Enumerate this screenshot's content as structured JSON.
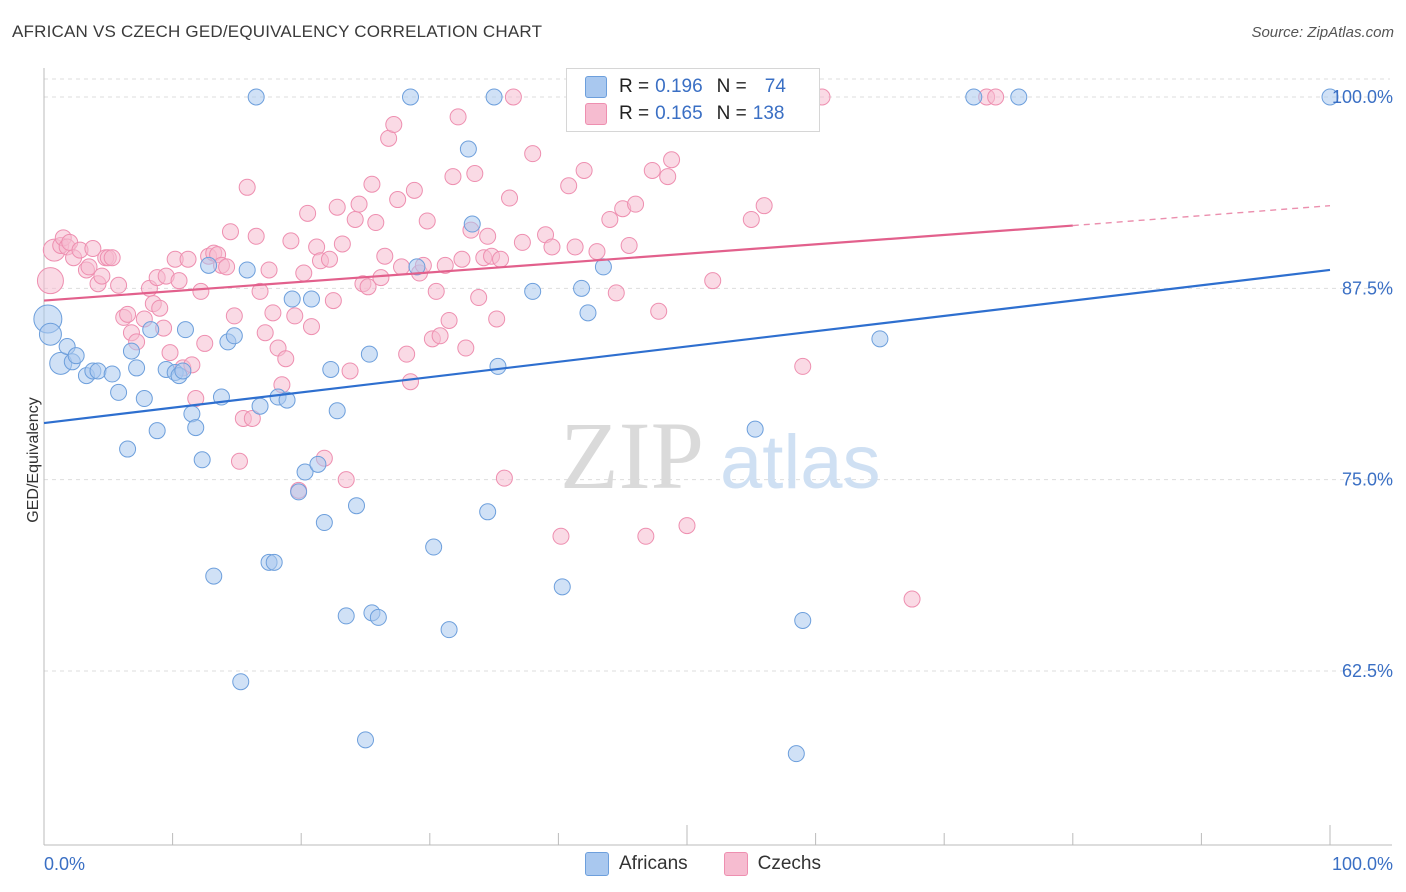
{
  "header": {
    "title": "AFRICAN VS CZECH GED/EQUIVALENCY CORRELATION CHART",
    "source": "Source: ZipAtlas.com"
  },
  "watermark": {
    "zip": "ZIP",
    "atlas": "atlas"
  },
  "legend_top": {
    "rows": [
      {
        "r_label": "R =",
        "r_value": "0.196",
        "n_label": "N =",
        "n_value": "74"
      },
      {
        "r_label": "R =",
        "r_value": "0.165",
        "n_label": "N =",
        "n_value": "138"
      }
    ]
  },
  "legend_bottom": {
    "items": [
      {
        "label": "Africans"
      },
      {
        "label": "Czechs"
      }
    ]
  },
  "colors": {
    "africans_fill": "#a9c8ef",
    "africans_stroke": "#6d9fdc",
    "africans_line": "#2e6fcf",
    "czechs_fill": "#f6bcd0",
    "czechs_stroke": "#ee8fb0",
    "czechs_line": "#e2608c",
    "axis_label": "#3a6fc4",
    "grid": "#dddddd"
  },
  "chart_data": {
    "type": "scatter",
    "title": "AFRICAN VS CZECH GED/EQUIVALENCY CORRELATION CHART",
    "xlabel": "",
    "ylabel": "GED/Equivalency",
    "xlim": [
      0,
      100
    ],
    "ylim": [
      53,
      101
    ],
    "x_tick_labels": [
      "0.0%",
      "100.0%"
    ],
    "y_ticks": [
      62.5,
      75.0,
      87.5,
      100.0
    ],
    "y_tick_labels": [
      "62.5%",
      "75.0%",
      "87.5%",
      "100.0%"
    ],
    "grid": true,
    "legend_position": "top-center",
    "series": [
      {
        "name": "Africans",
        "R": 0.196,
        "N": 74,
        "trend": {
          "x": [
            0,
            100
          ],
          "y": [
            78.7,
            88.7
          ]
        },
        "points": [
          [
            0.3,
            85.5
          ],
          [
            0.5,
            84.5
          ],
          [
            1.3,
            82.6
          ],
          [
            1.8,
            83.7
          ],
          [
            2.2,
            82.7
          ],
          [
            2.5,
            83.1
          ],
          [
            3.3,
            81.8
          ],
          [
            3.8,
            82.1
          ],
          [
            4.2,
            82.1
          ],
          [
            5.3,
            81.9
          ],
          [
            5.8,
            80.7
          ],
          [
            6.5,
            77.0
          ],
          [
            6.8,
            83.4
          ],
          [
            7.2,
            82.3
          ],
          [
            7.8,
            80.3
          ],
          [
            8.3,
            84.8
          ],
          [
            8.8,
            78.2
          ],
          [
            9.5,
            82.2
          ],
          [
            10.2,
            82.0
          ],
          [
            10.5,
            81.8
          ],
          [
            10.8,
            82.1
          ],
          [
            11.0,
            84.8
          ],
          [
            11.5,
            79.3
          ],
          [
            11.8,
            78.4
          ],
          [
            12.3,
            76.3
          ],
          [
            12.8,
            89.0
          ],
          [
            13.2,
            68.7
          ],
          [
            13.8,
            80.4
          ],
          [
            14.3,
            84.0
          ],
          [
            14.8,
            84.4
          ],
          [
            15.3,
            61.8
          ],
          [
            15.8,
            88.7
          ],
          [
            16.5,
            100.0
          ],
          [
            16.8,
            79.8
          ],
          [
            17.5,
            69.6
          ],
          [
            17.9,
            69.6
          ],
          [
            18.2,
            80.4
          ],
          [
            18.9,
            80.2
          ],
          [
            19.3,
            86.8
          ],
          [
            19.8,
            74.2
          ],
          [
            20.3,
            75.5
          ],
          [
            20.8,
            86.8
          ],
          [
            21.3,
            76.0
          ],
          [
            21.8,
            72.2
          ],
          [
            22.3,
            82.2
          ],
          [
            22.8,
            79.5
          ],
          [
            23.5,
            66.1
          ],
          [
            24.3,
            73.3
          ],
          [
            25.0,
            58.0
          ],
          [
            25.3,
            83.2
          ],
          [
            25.5,
            66.3
          ],
          [
            26.0,
            66.0
          ],
          [
            28.5,
            100.0
          ],
          [
            29.0,
            88.9
          ],
          [
            30.3,
            70.6
          ],
          [
            31.5,
            65.2
          ],
          [
            33.0,
            96.6
          ],
          [
            33.3,
            91.7
          ],
          [
            34.5,
            72.9
          ],
          [
            35.0,
            100.0
          ],
          [
            35.3,
            82.4
          ],
          [
            38.0,
            87.3
          ],
          [
            40.3,
            68.0
          ],
          [
            41.8,
            87.5
          ],
          [
            42.3,
            85.9
          ],
          [
            43.5,
            88.9
          ],
          [
            52.3,
            100.0
          ],
          [
            55.3,
            78.3
          ],
          [
            58.5,
            57.1
          ],
          [
            59.0,
            65.8
          ],
          [
            65.0,
            84.2
          ],
          [
            72.3,
            100.0
          ],
          [
            75.8,
            100.0
          ],
          [
            100.0,
            100.0
          ]
        ]
      },
      {
        "name": "Czechs",
        "R": 0.165,
        "N": 138,
        "trend": {
          "x": [
            0,
            80
          ],
          "y": [
            86.7,
            91.6
          ],
          "dashed_to": {
            "x": 100,
            "y": 92.9
          }
        },
        "points": [
          [
            0.5,
            88.0
          ],
          [
            0.8,
            90.0
          ],
          [
            1.3,
            90.3
          ],
          [
            1.5,
            90.8
          ],
          [
            1.8,
            90.2
          ],
          [
            2.0,
            90.5
          ],
          [
            2.3,
            89.5
          ],
          [
            2.8,
            90.0
          ],
          [
            3.3,
            88.7
          ],
          [
            3.5,
            88.9
          ],
          [
            3.8,
            90.1
          ],
          [
            4.2,
            87.8
          ],
          [
            4.5,
            88.3
          ],
          [
            4.8,
            89.5
          ],
          [
            5.0,
            89.5
          ],
          [
            5.3,
            89.5
          ],
          [
            5.8,
            87.7
          ],
          [
            6.2,
            85.6
          ],
          [
            6.5,
            85.8
          ],
          [
            6.8,
            84.6
          ],
          [
            7.2,
            84.0
          ],
          [
            7.8,
            85.5
          ],
          [
            8.2,
            87.5
          ],
          [
            8.5,
            86.5
          ],
          [
            8.8,
            88.2
          ],
          [
            9.0,
            86.2
          ],
          [
            9.3,
            84.9
          ],
          [
            9.5,
            88.3
          ],
          [
            9.8,
            83.3
          ],
          [
            10.2,
            89.4
          ],
          [
            10.5,
            88.0
          ],
          [
            10.8,
            82.3
          ],
          [
            11.2,
            89.4
          ],
          [
            11.5,
            82.5
          ],
          [
            11.8,
            80.3
          ],
          [
            12.2,
            87.3
          ],
          [
            12.5,
            83.9
          ],
          [
            12.8,
            89.6
          ],
          [
            13.2,
            89.8
          ],
          [
            13.5,
            89.7
          ],
          [
            13.8,
            89.0
          ],
          [
            14.2,
            88.9
          ],
          [
            14.5,
            91.2
          ],
          [
            14.8,
            85.7
          ],
          [
            15.2,
            76.2
          ],
          [
            15.5,
            79.0
          ],
          [
            15.8,
            94.1
          ],
          [
            16.2,
            79.0
          ],
          [
            16.5,
            90.9
          ],
          [
            16.8,
            87.3
          ],
          [
            17.2,
            84.6
          ],
          [
            17.5,
            88.7
          ],
          [
            17.8,
            85.9
          ],
          [
            18.2,
            83.6
          ],
          [
            18.5,
            81.2
          ],
          [
            18.8,
            82.9
          ],
          [
            19.2,
            90.6
          ],
          [
            19.5,
            85.7
          ],
          [
            19.8,
            74.3
          ],
          [
            20.2,
            88.5
          ],
          [
            20.5,
            92.4
          ],
          [
            20.8,
            85.0
          ],
          [
            21.2,
            90.2
          ],
          [
            21.5,
            89.3
          ],
          [
            21.8,
            76.4
          ],
          [
            22.2,
            89.4
          ],
          [
            22.5,
            86.7
          ],
          [
            22.8,
            92.8
          ],
          [
            23.2,
            90.4
          ],
          [
            23.5,
            75.0
          ],
          [
            23.8,
            82.1
          ],
          [
            24.2,
            92.0
          ],
          [
            24.5,
            93.0
          ],
          [
            24.8,
            87.8
          ],
          [
            25.2,
            87.6
          ],
          [
            25.5,
            94.3
          ],
          [
            25.8,
            91.8
          ],
          [
            26.2,
            88.2
          ],
          [
            26.5,
            89.6
          ],
          [
            26.8,
            97.3
          ],
          [
            27.2,
            98.2
          ],
          [
            27.5,
            93.3
          ],
          [
            27.8,
            88.9
          ],
          [
            28.2,
            83.2
          ],
          [
            28.5,
            81.4
          ],
          [
            28.8,
            93.9
          ],
          [
            29.2,
            88.5
          ],
          [
            29.5,
            89.0
          ],
          [
            29.8,
            91.9
          ],
          [
            30.2,
            84.2
          ],
          [
            30.5,
            87.3
          ],
          [
            30.8,
            84.4
          ],
          [
            31.2,
            89.0
          ],
          [
            31.5,
            85.4
          ],
          [
            31.8,
            94.8
          ],
          [
            32.2,
            98.7
          ],
          [
            32.5,
            89.4
          ],
          [
            32.8,
            83.6
          ],
          [
            33.2,
            91.3
          ],
          [
            33.5,
            95.0
          ],
          [
            33.8,
            86.9
          ],
          [
            34.2,
            89.5
          ],
          [
            34.5,
            90.9
          ],
          [
            34.8,
            89.6
          ],
          [
            35.2,
            85.5
          ],
          [
            35.5,
            89.4
          ],
          [
            35.8,
            75.1
          ],
          [
            36.2,
            93.4
          ],
          [
            36.5,
            100.0
          ],
          [
            37.2,
            90.5
          ],
          [
            38.0,
            96.3
          ],
          [
            39.0,
            91.0
          ],
          [
            39.5,
            90.2
          ],
          [
            40.2,
            71.3
          ],
          [
            40.8,
            94.2
          ],
          [
            41.3,
            90.2
          ],
          [
            42.0,
            95.2
          ],
          [
            43.0,
            89.9
          ],
          [
            44.0,
            92.0
          ],
          [
            44.5,
            87.2
          ],
          [
            45.0,
            92.7
          ],
          [
            45.5,
            90.3
          ],
          [
            46.0,
            93.0
          ],
          [
            46.8,
            71.3
          ],
          [
            47.3,
            95.2
          ],
          [
            47.8,
            86.0
          ],
          [
            48.5,
            94.8
          ],
          [
            48.8,
            95.9
          ],
          [
            50.0,
            72.0
          ],
          [
            52.0,
            88.0
          ],
          [
            55.0,
            92.0
          ],
          [
            56.0,
            92.9
          ],
          [
            58.5,
            100.0
          ],
          [
            59.0,
            82.4
          ],
          [
            60.5,
            100.0
          ],
          [
            67.5,
            67.2
          ],
          [
            73.3,
            100.0
          ],
          [
            74.0,
            100.0
          ]
        ]
      }
    ]
  }
}
